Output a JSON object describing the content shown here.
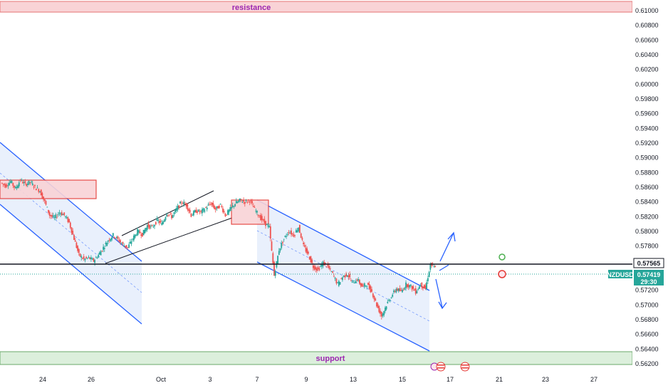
{
  "chart_data": {
    "type": "candlestick",
    "symbol": "NZDUSD",
    "last_price": "0.57419",
    "countdown": "29:30",
    "horizontal_level": "0.57565",
    "ylim": [
      0.5612,
      0.6112
    ],
    "y_ticks": [
      "0.61000",
      "0.60800",
      "0.60600",
      "0.60400",
      "0.60200",
      "0.60000",
      "0.59800",
      "0.59600",
      "0.59400",
      "0.59200",
      "0.59000",
      "0.58800",
      "0.58600",
      "0.58400",
      "0.58200",
      "0.58000",
      "0.57800",
      "0.57600",
      "0.57400",
      "0.57200",
      "0.57000",
      "0.56800",
      "0.56600",
      "0.56400",
      "0.56200"
    ],
    "x_ticks": [
      "24",
      "26",
      "Oct",
      "3",
      "7",
      "9",
      "13",
      "15",
      "17",
      "21",
      "23",
      "27"
    ],
    "zones": {
      "resistance": {
        "label": "resistance",
        "from": 0.6097,
        "to": 0.6112
      },
      "support": {
        "label": "support",
        "from": 0.562,
        "to": 0.5638
      }
    },
    "price_path": [
      0.5866,
      0.5862,
      0.5868,
      0.5858,
      0.587,
      0.5864,
      0.5867,
      0.586,
      0.5855,
      0.584,
      0.5822,
      0.5818,
      0.5826,
      0.5822,
      0.5812,
      0.579,
      0.5768,
      0.5762,
      0.5764,
      0.576,
      0.5768,
      0.5778,
      0.5788,
      0.5795,
      0.5789,
      0.5782,
      0.5778,
      0.579,
      0.58,
      0.5796,
      0.5808,
      0.5805,
      0.5815,
      0.581,
      0.5825,
      0.582,
      0.583,
      0.584,
      0.5836,
      0.5822,
      0.5828,
      0.5826,
      0.5832,
      0.5838,
      0.583,
      0.5836,
      0.5822,
      0.583,
      0.5838,
      0.5842,
      0.584,
      0.5842,
      0.583,
      0.582,
      0.5812,
      0.5805,
      0.574,
      0.5775,
      0.579,
      0.58,
      0.5795,
      0.5806,
      0.578,
      0.5768,
      0.5752,
      0.5748,
      0.5757,
      0.5752,
      0.5742,
      0.5728,
      0.5738,
      0.5742,
      0.573,
      0.5735,
      0.5725,
      0.5728,
      0.5718,
      0.57,
      0.5685,
      0.57,
      0.5712,
      0.5722,
      0.5718,
      0.5728,
      0.5725,
      0.5718,
      0.5728,
      0.5722,
      0.5755,
      0.575
    ],
    "colors": {
      "up": "#26a69a",
      "down": "#ef5350",
      "channel": "#2962ff",
      "fill": "#e3ecfb"
    }
  }
}
